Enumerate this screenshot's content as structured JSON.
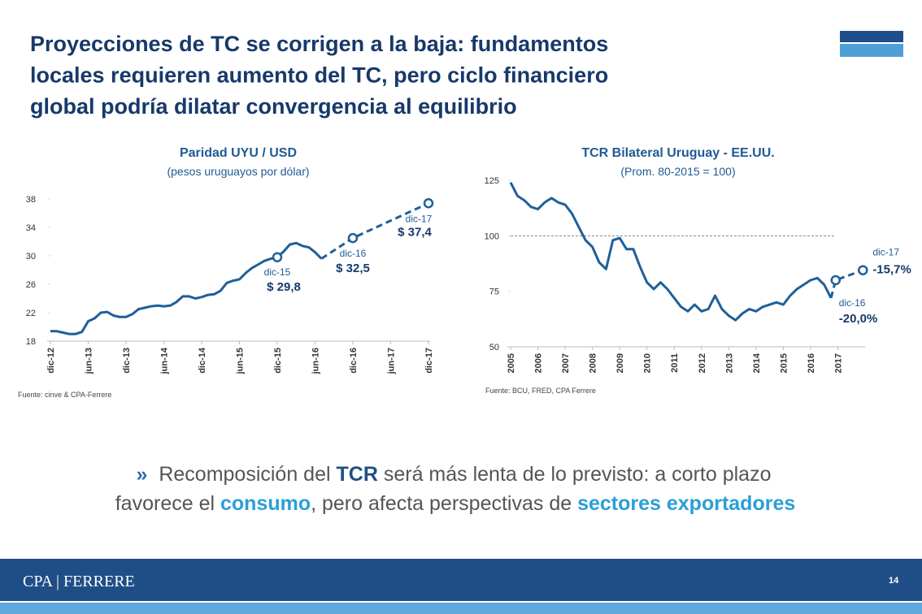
{
  "header": {
    "title_lines": [
      "Proyecciones de TC se corrigen a la baja: fundamentos",
      "locales requieren aumento del TC, pero ciclo financiero",
      "global podría dilatar convergencia al equilibrio"
    ]
  },
  "chart_data": [
    {
      "type": "line",
      "title": "Paridad UYU / USD",
      "subtitle": "(pesos uruguayos por dólar)",
      "source": "Fuente: cinve & CPA-Ferrere",
      "xlim": [
        0,
        60
      ],
      "ylim": [
        18,
        38
      ],
      "yticks": [
        18,
        22,
        26,
        30,
        34,
        38
      ],
      "xticks": [
        {
          "value": 0,
          "label": "dic-12"
        },
        {
          "value": 6,
          "label": "jun-13"
        },
        {
          "value": 12,
          "label": "dic-13"
        },
        {
          "value": 18,
          "label": "jun-14"
        },
        {
          "value": 24,
          "label": "dic-14"
        },
        {
          "value": 30,
          "label": "jun-15"
        },
        {
          "value": 36,
          "label": "dic-15"
        },
        {
          "value": 42,
          "label": "jun-16"
        },
        {
          "value": 48,
          "label": "dic-16"
        },
        {
          "value": 54,
          "label": "jun-17"
        },
        {
          "value": 60,
          "label": "dic-17"
        }
      ],
      "series": [
        {
          "color": "#1f5f99",
          "style": "solid",
          "x": [
            0,
            1,
            2,
            3,
            4,
            5,
            6,
            7,
            8,
            9,
            10,
            11,
            12,
            13,
            14,
            15,
            16,
            17,
            18,
            19,
            20,
            21,
            22,
            23,
            24,
            25,
            26,
            27,
            28,
            29,
            30,
            31,
            32,
            33,
            34,
            35,
            36,
            37,
            38,
            39,
            40,
            41,
            42,
            43
          ],
          "values": [
            19.4,
            19.4,
            19.2,
            19.0,
            19.0,
            19.3,
            20.8,
            21.2,
            22.0,
            22.1,
            21.6,
            21.4,
            21.4,
            21.8,
            22.5,
            22.7,
            22.9,
            23.0,
            22.9,
            23.0,
            23.5,
            24.3,
            24.3,
            24.0,
            24.2,
            24.5,
            24.6,
            25.1,
            26.2,
            26.5,
            26.7,
            27.6,
            28.3,
            28.8,
            29.3,
            29.6,
            29.8,
            30.6,
            31.6,
            31.8,
            31.4,
            31.2,
            30.5,
            29.6
          ]
        },
        {
          "color": "#1f5f99",
          "style": "dashed",
          "x": [
            43,
            48,
            60
          ],
          "values": [
            29.6,
            32.5,
            37.4
          ]
        }
      ],
      "markers": [
        {
          "x": 36,
          "value": 29.8,
          "label": "dic-15",
          "value_label": "$ 29,8"
        },
        {
          "x": 48,
          "value": 32.5,
          "label": "dic-16",
          "value_label": "$ 32,5"
        },
        {
          "x": 60,
          "value": 37.4,
          "label": "dic-17",
          "value_label": "$ 37,4"
        }
      ]
    },
    {
      "type": "line",
      "title": "TCR Bilateral Uruguay - EE.UU.",
      "subtitle": "(Prom. 80-2015 = 100)",
      "source": "Fuente: BCU, FRED, CPA Ferrere",
      "xlim": [
        2005,
        2018
      ],
      "ylim": [
        50,
        125
      ],
      "yticks": [
        50,
        75,
        100,
        125
      ],
      "hline": 100,
      "xticks": [
        2005,
        2006,
        2007,
        2008,
        2009,
        2010,
        2011,
        2012,
        2013,
        2014,
        2015,
        2016,
        2017
      ],
      "series": [
        {
          "color": "#1f5f99",
          "style": "solid",
          "x": [
            2005,
            2005.25,
            2005.5,
            2005.75,
            2006,
            2006.25,
            2006.5,
            2006.75,
            2007,
            2007.25,
            2007.5,
            2007.75,
            2008,
            2008.25,
            2008.5,
            2008.75,
            2009,
            2009.25,
            2009.5,
            2009.75,
            2010,
            2010.25,
            2010.5,
            2010.75,
            2011,
            2011.25,
            2011.5,
            2011.75,
            2012,
            2012.25,
            2012.5,
            2012.75,
            2013,
            2013.25,
            2013.5,
            2013.75,
            2014,
            2014.25,
            2014.5,
            2014.75,
            2015,
            2015.25,
            2015.5,
            2015.75,
            2016,
            2016.25,
            2016.5,
            2016.75
          ],
          "values": [
            124,
            118,
            116,
            113,
            112,
            115,
            117,
            115,
            114,
            110,
            104,
            98,
            95,
            88,
            85,
            98,
            99,
            94,
            94,
            86,
            79,
            76,
            79,
            76,
            72,
            68,
            66,
            69,
            66,
            67,
            73,
            67,
            64,
            62,
            65,
            67,
            66,
            68,
            69,
            70,
            69,
            73,
            76,
            78,
            80,
            81,
            78,
            72
          ]
        },
        {
          "color": "#1f5f99",
          "style": "dashed",
          "x": [
            2016.75,
            2016.92,
            2017.92
          ],
          "values": [
            72,
            80,
            84.5
          ]
        }
      ],
      "markers": [
        {
          "x": 2016.92,
          "value": 80,
          "label": "dic-16",
          "note": "-20,0%"
        },
        {
          "x": 2017.92,
          "value": 84.5,
          "label": "dic-17",
          "note": "-15,7%"
        }
      ]
    }
  ],
  "bullet": {
    "symbol": "»",
    "line1": [
      {
        "text": "Recomposición del ",
        "style": "plain"
      },
      {
        "text": "TCR",
        "style": "dark"
      },
      {
        "text": " será más lenta de lo previsto: a corto plazo",
        "style": "plain"
      }
    ],
    "line2": [
      {
        "text": "favorece el ",
        "style": "plain"
      },
      {
        "text": "consumo",
        "style": "cyan"
      },
      {
        "text": ", pero afecta perspectivas de ",
        "style": "plain"
      },
      {
        "text": "sectores exportadores",
        "style": "cyan"
      }
    ]
  },
  "footer": {
    "brand": "CPA | FERRERE",
    "page": "14"
  }
}
